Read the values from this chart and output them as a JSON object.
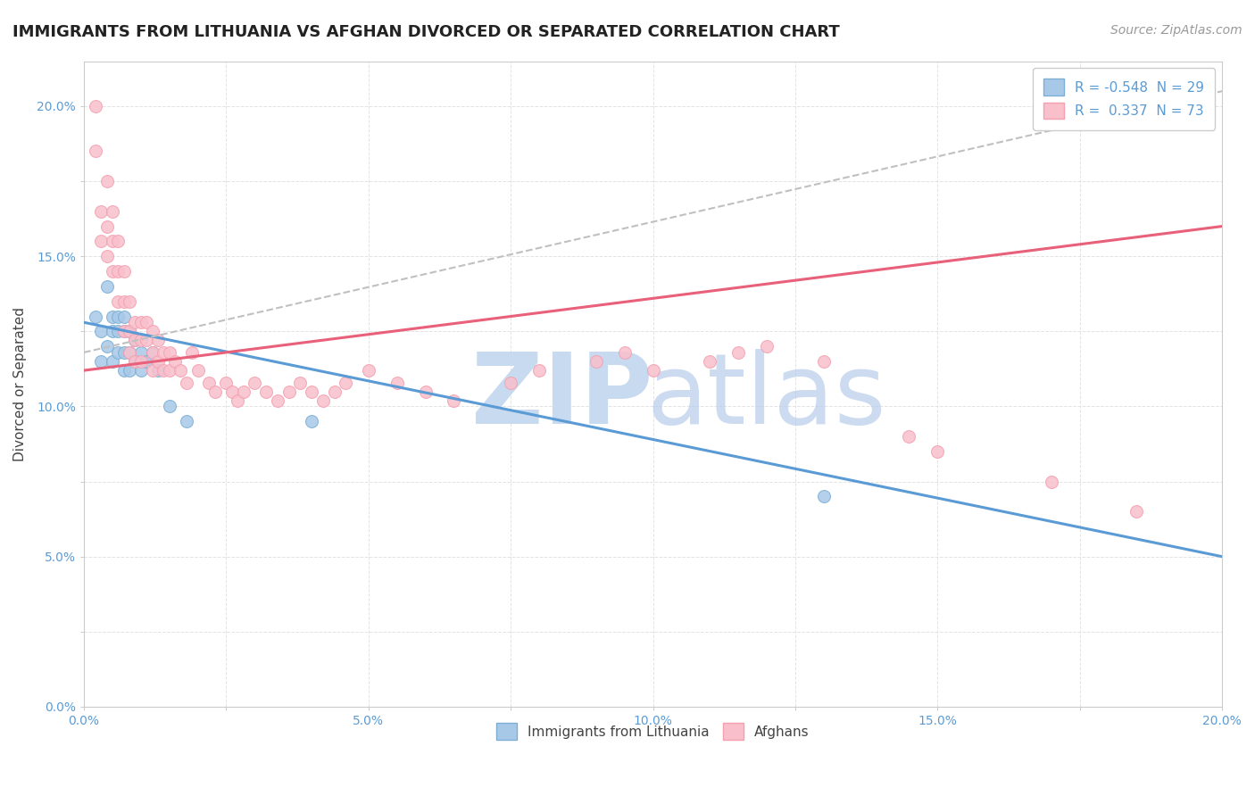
{
  "title": "IMMIGRANTS FROM LITHUANIA VS AFGHAN DIVORCED OR SEPARATED CORRELATION CHART",
  "source": "Source: ZipAtlas.com",
  "ylabel": "Divorced or Separated",
  "legend_bottom": [
    "Immigrants from Lithuania",
    "Afghans"
  ],
  "blue_color": "#7bafd4",
  "pink_color": "#f4a0b0",
  "blue_dot_color": "#a8c8e8",
  "pink_dot_color": "#f9c0cc",
  "trend_blue": "#5b9bd5",
  "trend_pink": "#e8607a",
  "trend_gray": "#c0c0c0",
  "xlim": [
    0.0,
    0.2
  ],
  "ylim": [
    0.0,
    0.215
  ],
  "blue_scatter_x": [
    0.002,
    0.003,
    0.003,
    0.004,
    0.004,
    0.005,
    0.005,
    0.005,
    0.006,
    0.006,
    0.006,
    0.007,
    0.007,
    0.007,
    0.007,
    0.008,
    0.008,
    0.008,
    0.009,
    0.009,
    0.01,
    0.01,
    0.011,
    0.012,
    0.013,
    0.015,
    0.018,
    0.04,
    0.13
  ],
  "blue_scatter_y": [
    0.13,
    0.125,
    0.115,
    0.14,
    0.12,
    0.13,
    0.125,
    0.115,
    0.13,
    0.125,
    0.118,
    0.13,
    0.125,
    0.118,
    0.112,
    0.125,
    0.118,
    0.112,
    0.122,
    0.115,
    0.118,
    0.112,
    0.115,
    0.118,
    0.112,
    0.1,
    0.095,
    0.095,
    0.07
  ],
  "pink_scatter_x": [
    0.002,
    0.002,
    0.003,
    0.003,
    0.004,
    0.004,
    0.004,
    0.005,
    0.005,
    0.005,
    0.006,
    0.006,
    0.006,
    0.007,
    0.007,
    0.007,
    0.008,
    0.008,
    0.008,
    0.009,
    0.009,
    0.009,
    0.01,
    0.01,
    0.01,
    0.011,
    0.011,
    0.012,
    0.012,
    0.012,
    0.013,
    0.013,
    0.014,
    0.014,
    0.015,
    0.015,
    0.016,
    0.017,
    0.018,
    0.019,
    0.02,
    0.022,
    0.023,
    0.025,
    0.026,
    0.027,
    0.028,
    0.03,
    0.032,
    0.034,
    0.036,
    0.038,
    0.04,
    0.042,
    0.044,
    0.046,
    0.05,
    0.055,
    0.06,
    0.065,
    0.075,
    0.08,
    0.09,
    0.095,
    0.1,
    0.11,
    0.115,
    0.12,
    0.13,
    0.145,
    0.15,
    0.17,
    0.185
  ],
  "pink_scatter_y": [
    0.185,
    0.2,
    0.155,
    0.165,
    0.175,
    0.16,
    0.15,
    0.165,
    0.155,
    0.145,
    0.155,
    0.145,
    0.135,
    0.145,
    0.135,
    0.125,
    0.135,
    0.125,
    0.118,
    0.128,
    0.122,
    0.115,
    0.128,
    0.122,
    0.115,
    0.128,
    0.122,
    0.125,
    0.118,
    0.112,
    0.122,
    0.115,
    0.118,
    0.112,
    0.118,
    0.112,
    0.115,
    0.112,
    0.108,
    0.118,
    0.112,
    0.108,
    0.105,
    0.108,
    0.105,
    0.102,
    0.105,
    0.108,
    0.105,
    0.102,
    0.105,
    0.108,
    0.105,
    0.102,
    0.105,
    0.108,
    0.112,
    0.108,
    0.105,
    0.102,
    0.108,
    0.112,
    0.115,
    0.118,
    0.112,
    0.115,
    0.118,
    0.12,
    0.115,
    0.09,
    0.085,
    0.075,
    0.065
  ],
  "blue_trendline_x": [
    0.0,
    0.2
  ],
  "blue_trendline_y": [
    0.128,
    0.05
  ],
  "pink_trendline_x": [
    0.0,
    0.2
  ],
  "pink_trendline_y": [
    0.112,
    0.16
  ],
  "gray_trendline_x": [
    0.0,
    0.2
  ],
  "gray_trendline_y": [
    0.118,
    0.205
  ],
  "title_fontsize": 13,
  "source_fontsize": 10,
  "watermark_fontsize": 36,
  "watermark_color": "#d0dff0",
  "tick_color": "#5b9bd5",
  "grid_color": "#e0e0e0",
  "legend1_text": "R = -0.548  N = 29",
  "legend2_text": "R =  0.337  N = 73"
}
